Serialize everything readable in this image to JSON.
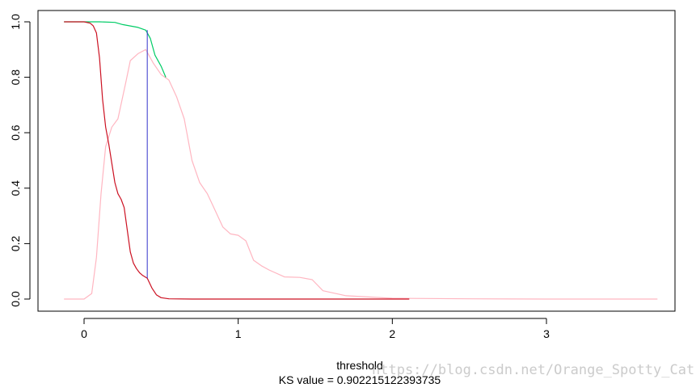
{
  "chart_data": {
    "type": "line",
    "xlabel": "threshold",
    "subtitle": "KS value = 0.902215122393735",
    "xlim": [
      -0.15,
      3.75
    ],
    "ylim": [
      0,
      1
    ],
    "x_ticks": [
      "0",
      "1",
      "2",
      "3"
    ],
    "y_ticks": [
      "0.0",
      "0.2",
      "0.4",
      "0.6",
      "0.8",
      "1.0"
    ],
    "grid": false,
    "ks_line": {
      "x": 0.41,
      "y_low": 0.075,
      "y_high": 0.97,
      "color": "#3333cc"
    },
    "series": [
      {
        "color": "#ffb6c1",
        "x": [
          -0.13,
          0.0,
          0.05,
          0.08,
          0.11,
          0.14,
          0.18,
          0.22,
          0.27,
          0.3,
          0.35,
          0.4,
          0.45,
          0.5,
          0.55,
          0.6,
          0.65,
          0.7,
          0.75,
          0.8,
          0.85,
          0.9,
          0.95,
          1.0,
          1.05,
          1.1,
          1.15,
          1.2,
          1.3,
          1.4,
          1.48,
          1.55,
          1.7,
          2.0,
          2.5,
          3.0,
          3.72
        ],
        "values": [
          0.0,
          0.0,
          0.02,
          0.15,
          0.38,
          0.55,
          0.62,
          0.65,
          0.78,
          0.86,
          0.885,
          0.9,
          0.85,
          0.81,
          0.79,
          0.73,
          0.65,
          0.5,
          0.42,
          0.38,
          0.32,
          0.26,
          0.235,
          0.23,
          0.21,
          0.14,
          0.12,
          0.105,
          0.08,
          0.078,
          0.07,
          0.03,
          0.012,
          0.003,
          0.001,
          0.0,
          0.0
        ]
      },
      {
        "color": "#00cc66",
        "x": [
          -0.13,
          0.0,
          0.1,
          0.2,
          0.25,
          0.3,
          0.35,
          0.4,
          0.43,
          0.46,
          0.5,
          0.53
        ],
        "values": [
          1.0,
          1.0,
          1.0,
          0.998,
          0.99,
          0.985,
          0.98,
          0.97,
          0.94,
          0.88,
          0.84,
          0.8
        ]
      },
      {
        "color": "#cc1122",
        "x": [
          -0.13,
          0.0,
          0.04,
          0.06,
          0.08,
          0.1,
          0.12,
          0.14,
          0.16,
          0.18,
          0.2,
          0.22,
          0.24,
          0.26,
          0.28,
          0.3,
          0.32,
          0.34,
          0.36,
          0.38,
          0.41,
          0.44,
          0.47,
          0.5,
          0.55,
          0.7,
          1.0,
          1.5,
          2.11
        ],
        "values": [
          1.0,
          1.0,
          0.995,
          0.985,
          0.96,
          0.87,
          0.72,
          0.62,
          0.56,
          0.49,
          0.42,
          0.38,
          0.36,
          0.33,
          0.25,
          0.17,
          0.13,
          0.11,
          0.095,
          0.085,
          0.075,
          0.04,
          0.015,
          0.005,
          0.001,
          0.0,
          0.0,
          0.0,
          0.0
        ]
      }
    ]
  },
  "watermark": "https://blog.csdn.net/Orange_Spotty_Cat"
}
